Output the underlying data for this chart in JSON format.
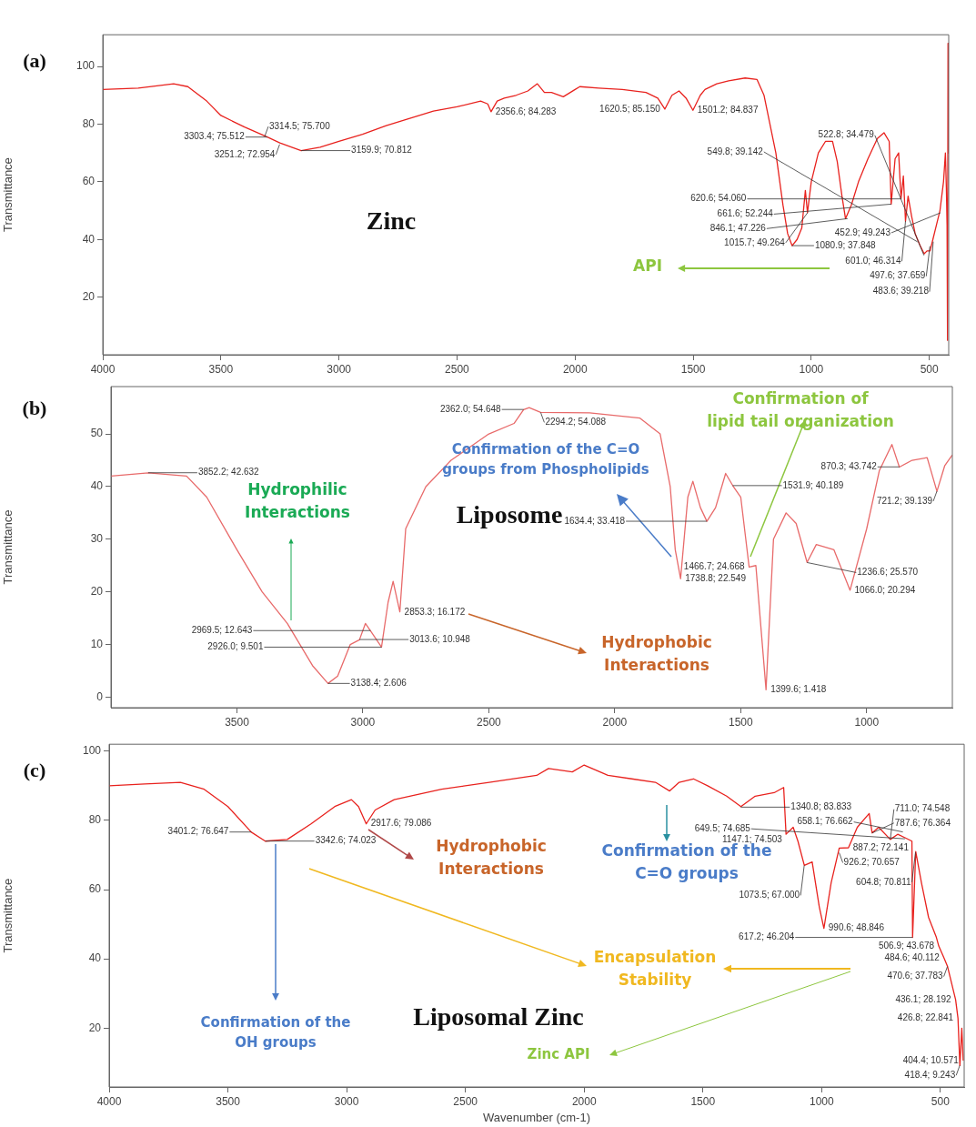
{
  "chart_data": [
    {
      "type": "line",
      "ylabel": "Transmittance",
      "color": "#e8221e",
      "x": [
        4000,
        3850,
        3700,
        3640,
        3560,
        3500,
        3400,
        3303.4,
        3250,
        3160,
        3080,
        3000,
        2900,
        2800,
        2700,
        2600,
        2500,
        2400,
        2370,
        2356,
        2330,
        2300,
        2250,
        2200,
        2160,
        2130,
        2100,
        2050,
        2000,
        1980,
        1900,
        1800,
        1700,
        1650,
        1620,
        1590,
        1560,
        1530,
        1501,
        1470,
        1450,
        1400,
        1350,
        1280,
        1230,
        1200,
        1150,
        1120,
        1100,
        1081,
        1060,
        1040,
        1025,
        1016,
        1000,
        970,
        940,
        910,
        890,
        870,
        855,
        830,
        800,
        760,
        720,
        692,
        670,
        661.6,
        645,
        630,
        620,
        610,
        601,
        590,
        575,
        560,
        540,
        522,
        510,
        497,
        485,
        470,
        455,
        440,
        432,
        428,
        425,
        423,
        421,
        419
      ],
      "values": [
        92,
        92.5,
        94,
        93,
        88,
        83,
        79,
        75.5,
        73.5,
        70.8,
        72,
        74,
        76.5,
        79.5,
        82,
        84.5,
        86,
        88,
        87,
        84.3,
        88,
        89,
        90,
        91.5,
        94,
        91,
        91,
        89.5,
        92,
        93,
        92.5,
        92,
        91,
        89,
        85.2,
        90,
        91.5,
        89,
        84.8,
        90,
        92,
        94,
        95,
        96,
        95.5,
        90,
        70,
        52,
        42,
        37.8,
        40,
        44,
        57,
        49.3,
        60,
        70,
        74,
        74,
        67,
        55,
        47.2,
        52,
        60,
        68,
        75,
        77,
        74,
        52.2,
        68,
        70,
        54.1,
        62,
        46.3,
        55,
        48,
        42,
        38,
        35,
        36,
        36,
        40,
        45,
        50,
        60,
        70,
        58,
        45,
        5,
        108,
        70
      ],
      "xlim": [
        4000,
        418
      ],
      "ylim": [
        0,
        111
      ],
      "xticks": [
        4000,
        3500,
        3000,
        2500,
        2000,
        1500,
        1000,
        500
      ],
      "yticks": [
        20,
        40,
        60,
        80,
        100
      ],
      "annotations": [
        "(a)",
        "Zinc",
        "API",
        {
          "text": "3303.4; 75.512",
          "x": 3303.4,
          "y": 75.512
        },
        {
          "text": "3314.5; 75.700",
          "x": 3314.5,
          "y": 75.7
        },
        {
          "text": "3251.2; 72.954",
          "x": 3251.2,
          "y": 72.954
        },
        {
          "text": "3159.9; 70.812",
          "x": 3159.9,
          "y": 70.812
        },
        {
          "text": "2356.6; 84.283",
          "x": 2356.6,
          "y": 84.283
        },
        {
          "text": "1620.5; 85.150",
          "x": 1620.5,
          "y": 85.15
        },
        {
          "text": "1501.2; 84.837",
          "x": 1501.2,
          "y": 84.837
        },
        {
          "text": "620.6; 54.060",
          "x": 620.6,
          "y": 54.06
        },
        {
          "text": "661.6; 52.244",
          "x": 661.6,
          "y": 52.244
        },
        {
          "text": "452.9; 49.243",
          "x": 452.9,
          "y": 49.243
        },
        {
          "text": "846.1; 47.226",
          "x": 846.1,
          "y": 47.226
        },
        {
          "text": "1015.7; 49.264",
          "x": 1015.7,
          "y": 49.264
        },
        {
          "text": "1080.9; 37.848",
          "x": 1080.9,
          "y": 37.848
        },
        {
          "text": "601.0; 46.314",
          "x": 601.0,
          "y": 46.314
        },
        {
          "text": "497.6; 37.659",
          "x": 497.6,
          "y": 37.659
        },
        {
          "text": "483.6; 39.218",
          "x": 483.6,
          "y": 39.218
        },
        {
          "text": "549.8; 39.142",
          "x": 549.8,
          "y": 39.142
        },
        {
          "text": "522.8; 34.479",
          "x": 522.8,
          "y": 34.479
        }
      ]
    },
    {
      "type": "line",
      "ylabel": "Transmittance",
      "color": "#e86a6a",
      "x": [
        4000,
        3852.2,
        3700,
        3620,
        3500,
        3400,
        3300,
        3200,
        3138.4,
        3100,
        3050,
        3013.6,
        2990,
        2969.5,
        2926,
        2900,
        2880,
        2853.3,
        2830,
        2750,
        2650,
        2500,
        2400,
        2362,
        2340,
        2294.2,
        2100,
        1900,
        1820,
        1780,
        1760,
        1738.8,
        1710,
        1690,
        1660,
        1634.4,
        1600,
        1560,
        1531.9,
        1500,
        1466.7,
        1440,
        1399.6,
        1370,
        1320,
        1280,
        1236.6,
        1200,
        1130,
        1066,
        1000,
        950,
        900,
        870.3,
        820,
        760,
        721.2,
        690,
        660
      ],
      "values": [
        42,
        42.6,
        42,
        38,
        28,
        20,
        14,
        6,
        2.6,
        4,
        10,
        10.9,
        14,
        12.6,
        9.5,
        18,
        22,
        16.2,
        32,
        40,
        45,
        50,
        52,
        54.6,
        55,
        54.1,
        54,
        53,
        50,
        40,
        28,
        22.5,
        38,
        41,
        36,
        33.4,
        36,
        42.5,
        40.2,
        38,
        24.7,
        25,
        1.4,
        30,
        35,
        33,
        25.6,
        29,
        28,
        20.3,
        32,
        43,
        48,
        43.7,
        45,
        45.5,
        39.1,
        44,
        46
      ],
      "xlim": [
        4000,
        660
      ],
      "ylim": [
        -2,
        59
      ],
      "xticks": [
        3500,
        3000,
        2500,
        2000,
        1500,
        1000
      ],
      "yticks": [
        0,
        10,
        20,
        30,
        40,
        50
      ],
      "annotations": [
        "(b)",
        "Liposome",
        "Hydrophilic Interactions",
        "Confirmation of the C=O groups from Phospholipids",
        "Confirmation of lipid tail organization",
        "Hydrophobic Interactions",
        {
          "text": "3852.2; 42.632",
          "x": 3852.2,
          "y": 42.632
        },
        {
          "text": "3138.4; 2.606",
          "x": 3138.4,
          "y": 2.606
        },
        {
          "text": "3013.6; 10.948",
          "x": 3013.6,
          "y": 10.948
        },
        {
          "text": "2926.0; 9.501",
          "x": 2926.0,
          "y": 9.501
        },
        {
          "text": "2969.5; 12.643",
          "x": 2969.5,
          "y": 12.643
        },
        {
          "text": "2853.3; 16.172",
          "x": 2853.3,
          "y": 16.172
        },
        {
          "text": "2362.0; 54.648",
          "x": 2362.0,
          "y": 54.648
        },
        {
          "text": "2294.2; 54.088",
          "x": 2294.2,
          "y": 54.088
        },
        {
          "text": "1738.8; 22.549",
          "x": 1738.8,
          "y": 22.549
        },
        {
          "text": "1634.4; 33.418",
          "x": 1634.4,
          "y": 33.418
        },
        {
          "text": "1531.9; 40.189",
          "x": 1531.9,
          "y": 40.189
        },
        {
          "text": "1466.7; 24.668",
          "x": 1466.7,
          "y": 24.668
        },
        {
          "text": "1399.6; 1.418",
          "x": 1399.6,
          "y": 1.418
        },
        {
          "text": "1236.6; 25.570",
          "x": 1236.6,
          "y": 25.57
        },
        {
          "text": "1066.0; 20.294",
          "x": 1066.0,
          "y": 20.294
        },
        {
          "text": "870.3; 43.742",
          "x": 870.3,
          "y": 43.742
        },
        {
          "text": "721.2; 39.139",
          "x": 721.2,
          "y": 39.139
        }
      ]
    },
    {
      "type": "line",
      "ylabel": "Transmittance",
      "xlabel": "Wavenumber (cm-1)",
      "color": "#e8221e",
      "x": [
        4000,
        3850,
        3700,
        3600,
        3500,
        3401.2,
        3342.6,
        3250,
        3150,
        3050,
        2980,
        2950,
        2917.6,
        2880,
        2800,
        2600,
        2400,
        2200,
        2150,
        2050,
        2000,
        1900,
        1800,
        1700,
        1640,
        1600,
        1540,
        1480,
        1400,
        1340,
        1280,
        1200,
        1160,
        1150,
        1120,
        1100,
        1073,
        1040,
        1010,
        990.6,
        960,
        926,
        887.2,
        850,
        800,
        787.6,
        760,
        711.0,
        680,
        649,
        620,
        617.2,
        604,
        580,
        550,
        517,
        507,
        484,
        470,
        436,
        426,
        418,
        410,
        404
      ],
      "values": [
        90,
        90.5,
        91,
        89,
        84,
        76.6,
        74,
        74.5,
        79,
        84,
        86,
        84,
        79,
        83,
        86,
        89,
        91,
        93,
        95,
        94,
        96,
        93,
        92,
        91,
        88.5,
        91,
        92,
        90,
        87,
        84,
        87,
        88,
        89.5,
        76,
        78,
        74,
        67,
        68,
        55,
        48.8,
        62,
        72,
        72.1,
        78,
        82,
        76.4,
        78,
        74.5,
        76,
        75,
        74,
        46.2,
        71,
        62,
        52,
        46.2,
        43.7,
        40.1,
        37.8,
        28.2,
        22.8,
        9.2,
        20,
        10.6
      ],
      "xlim": [
        4000,
        400
      ],
      "ylim": [
        3,
        102
      ],
      "xticks": [
        4000,
        3500,
        3000,
        2500,
        2000,
        1500,
        1000,
        500
      ],
      "yticks": [
        20,
        40,
        60,
        80,
        100
      ],
      "annotations": [
        "(c)",
        "Liposomal Zinc",
        "Hydrophobic Interactions",
        "Confirmation of the C=O groups",
        "Confirmation of the OH groups",
        "Encapsulation Stability",
        "Zinc API",
        {
          "text": "3401.2; 76.647",
          "x": 3401.2,
          "y": 76.647
        },
        {
          "text": "3342.6; 74.023",
          "x": 3342.6,
          "y": 74.023
        },
        {
          "text": "2917.6; 79.086",
          "x": 2917.6,
          "y": 79.086
        },
        {
          "text": "1340.8; 83.833",
          "x": 1340.8,
          "y": 83.833
        },
        {
          "text": "1147.1; 74.503",
          "x": 1147.1,
          "y": 74.503
        },
        {
          "text": "787.6; 76.364",
          "x": 787.6,
          "y": 76.364
        },
        {
          "text": "1073.5; 67.000",
          "x": 1073.5,
          "y": 67.0
        },
        {
          "text": "926.2; 70.657",
          "x": 926.2,
          "y": 70.657
        },
        {
          "text": "887.2; 72.141",
          "x": 887.2,
          "y": 72.141
        },
        {
          "text": "990.6; 48.846",
          "x": 990.6,
          "y": 48.846
        },
        {
          "text": "604.8; 70.811",
          "x": 604.8,
          "y": 70.811
        },
        {
          "text": "649.5; 74.685",
          "x": 649.5,
          "y": 74.685
        },
        {
          "text": "711.0; 74.548",
          "x": 711.0,
          "y": 74.548
        },
        {
          "text": "658.1; 76.662",
          "x": 658.1,
          "y": 76.662
        },
        {
          "text": "617.2; 46.204",
          "x": 617.2,
          "y": 46.204
        },
        {
          "text": "506.9; 43.678",
          "x": 506.9,
          "y": 43.678
        },
        {
          "text": "484.6; 40.112",
          "x": 484.6,
          "y": 40.112
        },
        {
          "text": "470.6; 37.783",
          "x": 470.6,
          "y": 37.783
        },
        {
          "text": "436.1; 28.192",
          "x": 436.1,
          "y": 28.192
        },
        {
          "text": "426.8; 22.841",
          "x": 426.8,
          "y": 22.841
        },
        {
          "text": "404.4; 10.571",
          "x": 404.4,
          "y": 10.571
        },
        {
          "text": "418.4; 9.243",
          "x": 418.4,
          "y": 9.243
        }
      ]
    }
  ]
}
